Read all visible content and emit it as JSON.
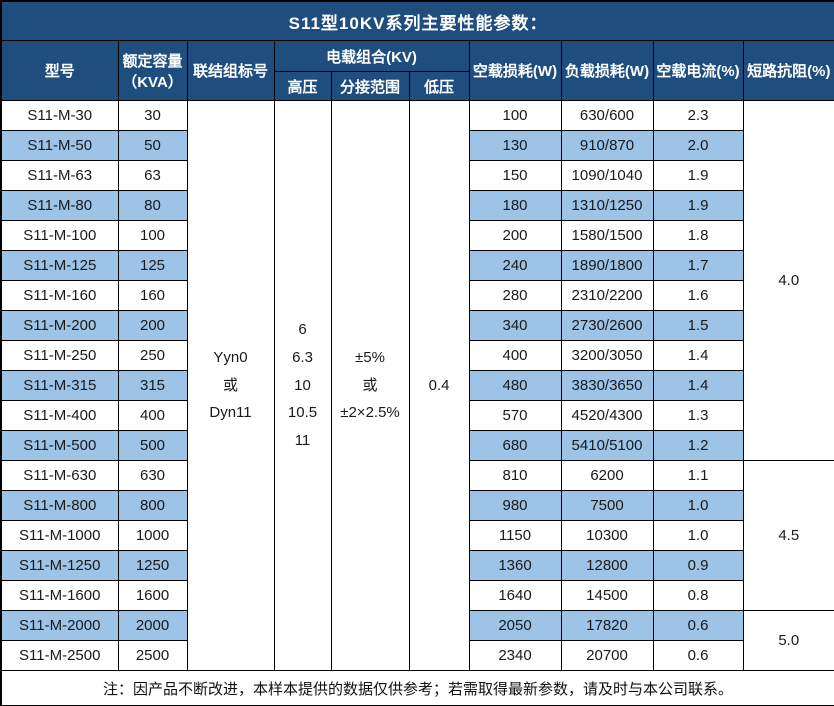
{
  "title": "S11型10KV系列主要性能参数：",
  "colors": {
    "header_bg": "#1f4e7e",
    "row_alt_bg": "#9dc3e6",
    "row_bg": "#ffffff",
    "border": "#000000",
    "header_text": "#ffffff",
    "body_text": "#1a1a1a"
  },
  "header": {
    "model": "型号",
    "capacity_line1": "额定容量",
    "capacity_line2": "（KVA）",
    "connection": "联结组标号",
    "voltage_group": "电载组合(KV)",
    "hv": "高压",
    "tap_range": "分接范围",
    "lv": "低压",
    "no_load_loss": "空载损耗(W)",
    "load_loss": "负载损耗(W)",
    "no_load_current": "空载电流(%)",
    "impedance": "短路抗阻(%)"
  },
  "merged_cells": {
    "connection_lines": [
      "Yyn0",
      "或",
      "Dyn11"
    ],
    "hv_lines": [
      "6",
      "6.3",
      "10",
      "10.5",
      "11"
    ],
    "tap_lines": [
      "±5%",
      "或",
      "±2×2.5%"
    ],
    "lv_value": "0.4"
  },
  "impedance_groups": [
    {
      "value": "4.0",
      "span": 12
    },
    {
      "value": "4.5",
      "span": 5
    },
    {
      "value": "5.0",
      "span": 2
    }
  ],
  "rows": [
    {
      "model": "S11-M-30",
      "capacity": "30",
      "no_load_loss": "100",
      "load_loss": "630/600",
      "current": "2.3"
    },
    {
      "model": "S11-M-50",
      "capacity": "50",
      "no_load_loss": "130",
      "load_loss": "910/870",
      "current": "2.0"
    },
    {
      "model": "S11-M-63",
      "capacity": "63",
      "no_load_loss": "150",
      "load_loss": "1090/1040",
      "current": "1.9"
    },
    {
      "model": "S11-M-80",
      "capacity": "80",
      "no_load_loss": "180",
      "load_loss": "1310/1250",
      "current": "1.9"
    },
    {
      "model": "S11-M-100",
      "capacity": "100",
      "no_load_loss": "200",
      "load_loss": "1580/1500",
      "current": "1.8"
    },
    {
      "model": "S11-M-125",
      "capacity": "125",
      "no_load_loss": "240",
      "load_loss": "1890/1800",
      "current": "1.7"
    },
    {
      "model": "S11-M-160",
      "capacity": "160",
      "no_load_loss": "280",
      "load_loss": "2310/2200",
      "current": "1.6"
    },
    {
      "model": "S11-M-200",
      "capacity": "200",
      "no_load_loss": "340",
      "load_loss": "2730/2600",
      "current": "1.5"
    },
    {
      "model": "S11-M-250",
      "capacity": "250",
      "no_load_loss": "400",
      "load_loss": "3200/3050",
      "current": "1.4"
    },
    {
      "model": "S11-M-315",
      "capacity": "315",
      "no_load_loss": "480",
      "load_loss": "3830/3650",
      "current": "1.4"
    },
    {
      "model": "S11-M-400",
      "capacity": "400",
      "no_load_loss": "570",
      "load_loss": "4520/4300",
      "current": "1.3"
    },
    {
      "model": "S11-M-500",
      "capacity": "500",
      "no_load_loss": "680",
      "load_loss": "5410/5100",
      "current": "1.2"
    },
    {
      "model": "S11-M-630",
      "capacity": "630",
      "no_load_loss": "810",
      "load_loss": "6200",
      "current": "1.1"
    },
    {
      "model": "S11-M-800",
      "capacity": "800",
      "no_load_loss": "980",
      "load_loss": "7500",
      "current": "1.0"
    },
    {
      "model": "S11-M-1000",
      "capacity": "1000",
      "no_load_loss": "1150",
      "load_loss": "10300",
      "current": "1.0"
    },
    {
      "model": "S11-M-1250",
      "capacity": "1250",
      "no_load_loss": "1360",
      "load_loss": "12800",
      "current": "0.9"
    },
    {
      "model": "S11-M-1600",
      "capacity": "1600",
      "no_load_loss": "1640",
      "load_loss": "14500",
      "current": "0.8"
    },
    {
      "model": "S11-M-2000",
      "capacity": "2000",
      "no_load_loss": "2050",
      "load_loss": "17820",
      "current": "0.6"
    },
    {
      "model": "S11-M-2500",
      "capacity": "2500",
      "no_load_loss": "2340",
      "load_loss": "20700",
      "current": "0.6"
    }
  ],
  "note": "注：因产品不断改进，本样本提供的数据仅供参考；若需取得最新参数，请及时与本公司联系。"
}
